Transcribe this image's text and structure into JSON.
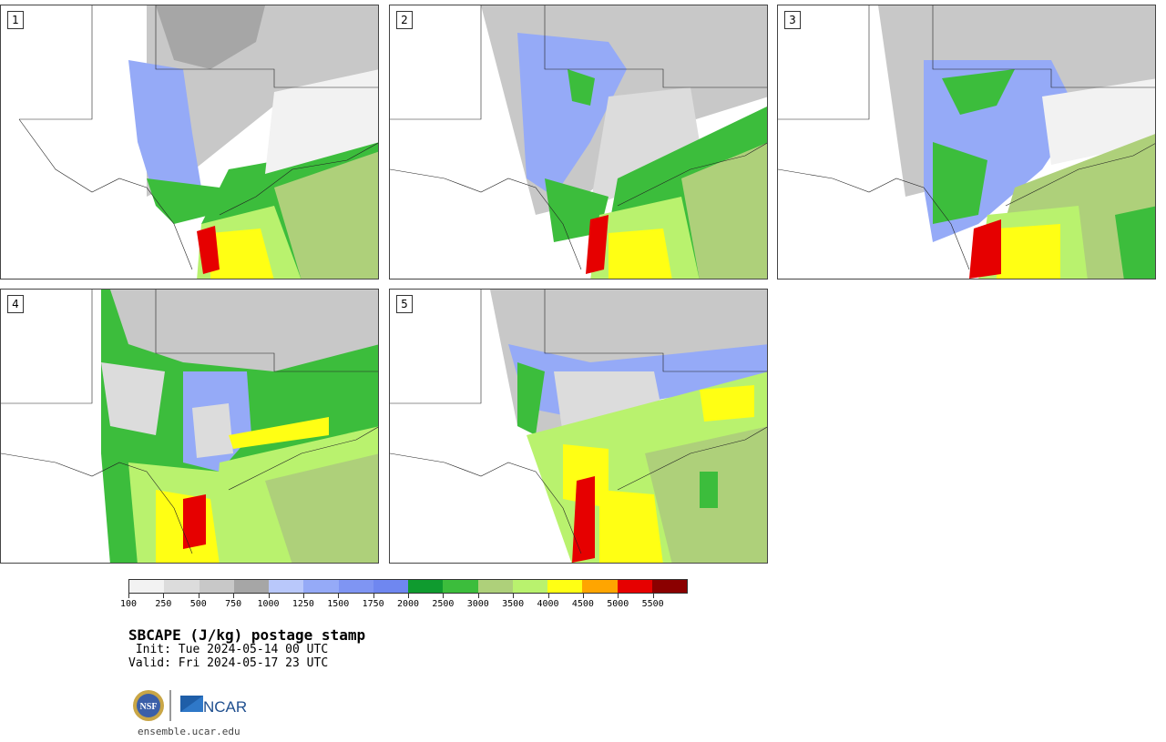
{
  "panels": [
    {
      "number": "1"
    },
    {
      "number": "2"
    },
    {
      "number": "3"
    },
    {
      "number": "4"
    },
    {
      "number": "5"
    }
  ],
  "colorbar": {
    "colors": [
      "#f2f2f2",
      "#dcdcdc",
      "#c8c8c8",
      "#a6a6a6",
      "#b9c8fb",
      "#95aaf7",
      "#7f95f3",
      "#6f87f0",
      "#0f9b2f",
      "#3cbd3c",
      "#aed07a",
      "#b9f26e",
      "#ffff14",
      "#ffa500",
      "#e60000",
      "#8b0000"
    ],
    "labels": [
      "100",
      "250",
      "500",
      "750",
      "1000",
      "1250",
      "1500",
      "1750",
      "2000",
      "2500",
      "3000",
      "3500",
      "4000",
      "4500",
      "5000",
      "5500"
    ]
  },
  "title": "SBCAPE (J/kg) postage stamp",
  "init": " Init: Tue 2024-05-14 00 UTC",
  "valid": "Valid: Fri 2024-05-17 23 UTC",
  "logos": {
    "nsf": "NSF",
    "ncar": "NCAR"
  },
  "site": "ensemble.ucar.edu"
}
